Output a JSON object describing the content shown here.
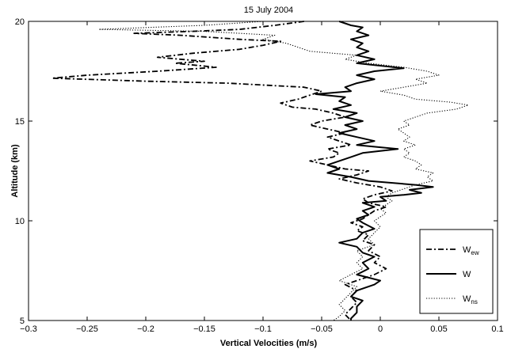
{
  "chart_data": {
    "type": "line",
    "title": "15 July 2004",
    "xlabel": "Vertical Velocities (m/s)",
    "ylabel": "Altitude (km)",
    "xlim": [
      -0.3,
      0.1
    ],
    "ylim": [
      5,
      20
    ],
    "xticks": [
      -0.3,
      -0.25,
      -0.2,
      -0.15,
      -0.1,
      -0.05,
      0,
      0.05,
      0.1
    ],
    "xtick_labels": [
      "−0.3",
      "−0.25",
      "−0.2",
      "−0.15",
      "−0.1",
      "−0.05",
      "0",
      "0.05",
      "0.1"
    ],
    "yticks": [
      5,
      10,
      15,
      20
    ],
    "ytick_labels": [
      "5",
      "10",
      "15",
      "20"
    ],
    "grid": false,
    "legend_position": "bottom-right",
    "series": [
      {
        "name": "W",
        "name_sub": "ew",
        "style": "dashdot",
        "color": "#000000",
        "points": [
          [
            -0.065,
            20.0
          ],
          [
            -0.09,
            19.8
          ],
          [
            -0.12,
            19.6
          ],
          [
            -0.16,
            19.5
          ],
          [
            -0.21,
            19.4
          ],
          [
            -0.17,
            19.3
          ],
          [
            -0.12,
            19.1
          ],
          [
            -0.085,
            19.0
          ],
          [
            -0.1,
            18.8
          ],
          [
            -0.12,
            18.6
          ],
          [
            -0.16,
            18.4
          ],
          [
            -0.19,
            18.2
          ],
          [
            -0.15,
            18.0
          ],
          [
            -0.175,
            17.9
          ],
          [
            -0.14,
            17.7
          ],
          [
            -0.19,
            17.5
          ],
          [
            -0.25,
            17.3
          ],
          [
            -0.28,
            17.15
          ],
          [
            -0.2,
            17.0
          ],
          [
            -0.13,
            16.9
          ],
          [
            -0.065,
            16.7
          ],
          [
            -0.05,
            16.5
          ],
          [
            -0.06,
            16.3
          ],
          [
            -0.07,
            16.1
          ],
          [
            -0.085,
            15.9
          ],
          [
            -0.075,
            15.7
          ],
          [
            -0.055,
            15.6
          ],
          [
            -0.04,
            15.4
          ],
          [
            -0.03,
            15.2
          ],
          [
            -0.05,
            15.0
          ],
          [
            -0.06,
            14.8
          ],
          [
            -0.045,
            14.6
          ],
          [
            -0.03,
            14.4
          ],
          [
            -0.045,
            14.2
          ],
          [
            -0.035,
            14.0
          ],
          [
            -0.025,
            13.8
          ],
          [
            -0.045,
            13.6
          ],
          [
            -0.035,
            13.4
          ],
          [
            -0.04,
            13.2
          ],
          [
            -0.06,
            13.0
          ],
          [
            -0.045,
            12.8
          ],
          [
            -0.03,
            12.6
          ],
          [
            -0.01,
            12.5
          ],
          [
            -0.02,
            12.3
          ],
          [
            -0.035,
            12.1
          ],
          [
            -0.02,
            11.9
          ],
          [
            0.0,
            11.7
          ],
          [
            0.01,
            11.5
          ],
          [
            -0.005,
            11.3
          ],
          [
            -0.015,
            11.1
          ],
          [
            -0.01,
            10.9
          ],
          [
            0.005,
            10.7
          ],
          [
            -0.005,
            10.5
          ],
          [
            -0.01,
            10.3
          ],
          [
            -0.015,
            10.1
          ],
          [
            -0.025,
            9.9
          ],
          [
            -0.015,
            9.7
          ],
          [
            -0.02,
            9.5
          ],
          [
            -0.01,
            9.3
          ],
          [
            -0.015,
            9.0
          ],
          [
            -0.005,
            8.8
          ],
          [
            -0.01,
            8.5
          ],
          [
            0.0,
            8.2
          ],
          [
            -0.005,
            7.9
          ],
          [
            0.005,
            7.6
          ],
          [
            -0.005,
            7.3
          ],
          [
            -0.02,
            7.0
          ],
          [
            -0.03,
            6.8
          ],
          [
            -0.02,
            6.5
          ],
          [
            -0.025,
            6.2
          ],
          [
            -0.02,
            5.9
          ],
          [
            -0.025,
            5.6
          ],
          [
            -0.03,
            5.3
          ],
          [
            -0.025,
            5.0
          ]
        ]
      },
      {
        "name": "W",
        "name_sub": "",
        "style": "solid",
        "color": "#000000",
        "points": [
          [
            -0.035,
            20.0
          ],
          [
            -0.025,
            19.8
          ],
          [
            -0.015,
            19.7
          ],
          [
            -0.02,
            19.5
          ],
          [
            -0.01,
            19.3
          ],
          [
            -0.025,
            19.1
          ],
          [
            -0.015,
            18.9
          ],
          [
            -0.02,
            18.7
          ],
          [
            -0.01,
            18.5
          ],
          [
            -0.02,
            18.3
          ],
          [
            -0.005,
            18.1
          ],
          [
            -0.02,
            17.9
          ],
          [
            0.02,
            17.65
          ],
          [
            -0.005,
            17.5
          ],
          [
            -0.02,
            17.3
          ],
          [
            -0.005,
            17.1
          ],
          [
            -0.02,
            16.9
          ],
          [
            -0.03,
            16.7
          ],
          [
            -0.025,
            16.5
          ],
          [
            -0.055,
            16.35
          ],
          [
            -0.03,
            16.2
          ],
          [
            -0.035,
            16.0
          ],
          [
            -0.025,
            15.8
          ],
          [
            -0.04,
            15.6
          ],
          [
            -0.02,
            15.4
          ],
          [
            -0.03,
            15.2
          ],
          [
            -0.015,
            15.0
          ],
          [
            -0.03,
            14.8
          ],
          [
            -0.02,
            14.6
          ],
          [
            -0.035,
            14.4
          ],
          [
            -0.02,
            14.2
          ],
          [
            -0.005,
            14.0
          ],
          [
            -0.02,
            13.8
          ],
          [
            0.015,
            13.6
          ],
          [
            -0.015,
            13.4
          ],
          [
            -0.025,
            13.2
          ],
          [
            -0.035,
            13.0
          ],
          [
            -0.045,
            12.8
          ],
          [
            -0.035,
            12.6
          ],
          [
            -0.045,
            12.4
          ],
          [
            -0.025,
            12.2
          ],
          [
            -0.01,
            12.0
          ],
          [
            0.03,
            11.8
          ],
          [
            0.045,
            11.7
          ],
          [
            0.025,
            11.55
          ],
          [
            0.035,
            11.4
          ],
          [
            0.02,
            11.3
          ],
          [
            0.0,
            11.2
          ],
          [
            0.005,
            11.0
          ],
          [
            -0.015,
            10.9
          ],
          [
            -0.005,
            10.7
          ],
          [
            -0.015,
            10.5
          ],
          [
            -0.01,
            10.3
          ],
          [
            -0.02,
            10.1
          ],
          [
            -0.015,
            9.9
          ],
          [
            -0.005,
            9.6
          ],
          [
            -0.015,
            9.4
          ],
          [
            -0.02,
            9.1
          ],
          [
            -0.035,
            8.9
          ],
          [
            -0.02,
            8.7
          ],
          [
            -0.015,
            8.4
          ],
          [
            -0.005,
            8.2
          ],
          [
            -0.015,
            7.9
          ],
          [
            -0.01,
            7.6
          ],
          [
            -0.02,
            7.3
          ],
          [
            0.0,
            7.0
          ],
          [
            -0.005,
            6.8
          ],
          [
            -0.02,
            6.5
          ],
          [
            -0.025,
            6.2
          ],
          [
            -0.015,
            6.0
          ],
          [
            -0.02,
            5.7
          ],
          [
            -0.02,
            5.4
          ],
          [
            -0.025,
            5.1
          ],
          [
            -0.025,
            5.0
          ]
        ]
      },
      {
        "name": "W",
        "name_sub": "ns",
        "style": "dotted",
        "color": "#000000",
        "points": [
          [
            -0.1,
            20.0
          ],
          [
            -0.15,
            19.8
          ],
          [
            -0.24,
            19.6
          ],
          [
            -0.15,
            19.5
          ],
          [
            -0.09,
            19.3
          ],
          [
            -0.1,
            19.1
          ],
          [
            -0.08,
            18.9
          ],
          [
            -0.07,
            18.7
          ],
          [
            -0.06,
            18.5
          ],
          [
            -0.02,
            18.3
          ],
          [
            -0.03,
            18.1
          ],
          [
            -0.01,
            17.9
          ],
          [
            0.02,
            17.7
          ],
          [
            0.04,
            17.5
          ],
          [
            0.05,
            17.3
          ],
          [
            0.03,
            17.1
          ],
          [
            0.04,
            16.9
          ],
          [
            0.02,
            16.7
          ],
          [
            0.0,
            16.5
          ],
          [
            0.02,
            16.3
          ],
          [
            0.03,
            16.1
          ],
          [
            0.06,
            15.95
          ],
          [
            0.075,
            15.8
          ],
          [
            0.065,
            15.6
          ],
          [
            0.04,
            15.4
          ],
          [
            0.03,
            15.2
          ],
          [
            0.02,
            15.0
          ],
          [
            0.025,
            14.8
          ],
          [
            0.015,
            14.6
          ],
          [
            0.02,
            14.4
          ],
          [
            0.025,
            14.2
          ],
          [
            0.02,
            14.0
          ],
          [
            0.03,
            13.8
          ],
          [
            0.02,
            13.6
          ],
          [
            0.025,
            13.4
          ],
          [
            0.02,
            13.2
          ],
          [
            0.03,
            13.0
          ],
          [
            0.035,
            12.8
          ],
          [
            0.03,
            12.6
          ],
          [
            0.045,
            12.4
          ],
          [
            0.04,
            12.2
          ],
          [
            0.045,
            12.0
          ],
          [
            0.03,
            11.8
          ],
          [
            0.02,
            11.6
          ],
          [
            0.01,
            11.4
          ],
          [
            0.005,
            11.2
          ],
          [
            0.01,
            11.0
          ],
          [
            0.005,
            10.8
          ],
          [
            0.0,
            10.6
          ],
          [
            0.005,
            10.4
          ],
          [
            0.0,
            10.2
          ],
          [
            -0.005,
            10.0
          ],
          [
            0.0,
            9.7
          ],
          [
            -0.005,
            9.4
          ],
          [
            -0.01,
            9.1
          ],
          [
            -0.005,
            8.8
          ],
          [
            -0.02,
            8.5
          ],
          [
            -0.015,
            8.2
          ],
          [
            -0.02,
            7.9
          ],
          [
            -0.015,
            7.6
          ],
          [
            -0.025,
            7.3
          ],
          [
            -0.035,
            7.0
          ],
          [
            -0.02,
            6.7
          ],
          [
            -0.025,
            6.4
          ],
          [
            -0.03,
            6.1
          ],
          [
            -0.035,
            5.8
          ],
          [
            -0.03,
            5.5
          ],
          [
            -0.035,
            5.2
          ],
          [
            -0.04,
            5.0
          ]
        ]
      }
    ]
  },
  "colors": {
    "axis": "#000000",
    "background": "#ffffff"
  }
}
